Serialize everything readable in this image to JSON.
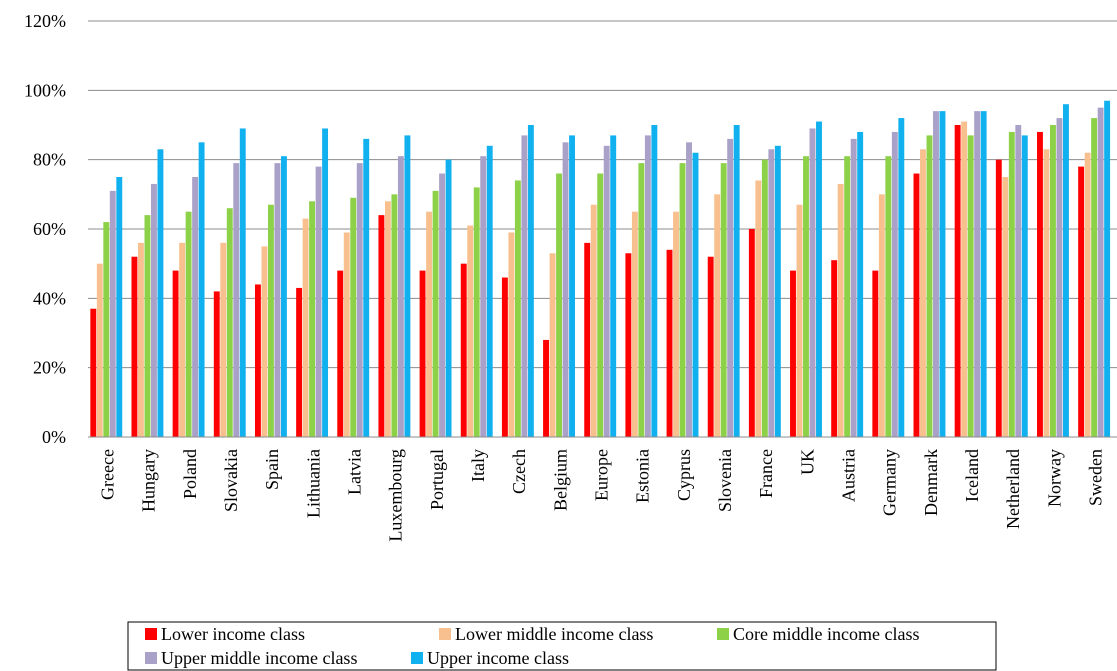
{
  "chart_data": {
    "type": "bar",
    "title": "",
    "xlabel": "",
    "ylabel": "",
    "ylim": [
      0,
      120
    ],
    "yticks": [
      "0%",
      "20%",
      "40%",
      "60%",
      "80%",
      "100%",
      "120%"
    ],
    "grid": true,
    "legend_position": "bottom",
    "categories": [
      "Greece",
      "Hungary",
      "Poland",
      "Slovakia",
      "Spain",
      "Lithuania",
      "Latvia",
      "Luxembourg",
      "Portugal",
      "Italy",
      "Czech",
      "Belgium",
      "Europe",
      "Estonia",
      "Cyprus",
      "Slovenia",
      "France",
      "UK",
      "Austria",
      "Germany",
      "Denmark",
      "Iceland",
      "Netherland",
      "Norway",
      "Sweden"
    ],
    "series": [
      {
        "name": "Lower income class",
        "color": "#FF0000",
        "values": [
          37,
          52,
          48,
          42,
          44,
          43,
          48,
          64,
          48,
          50,
          46,
          28,
          56,
          53,
          54,
          52,
          60,
          48,
          51,
          48,
          76,
          90,
          80,
          88,
          78
        ]
      },
      {
        "name": "Lower middle income class",
        "color": "#F9C08F",
        "values": [
          50,
          56,
          56,
          56,
          55,
          63,
          59,
          68,
          65,
          61,
          59,
          53,
          67,
          65,
          65,
          70,
          74,
          67,
          73,
          70,
          83,
          91,
          75,
          83,
          82
        ]
      },
      {
        "name": "Core middle income class",
        "color": "#8CD147",
        "values": [
          62,
          64,
          65,
          66,
          67,
          68,
          69,
          70,
          71,
          72,
          74,
          76,
          76,
          79,
          79,
          79,
          80,
          81,
          81,
          81,
          87,
          87,
          88,
          90,
          92
        ]
      },
      {
        "name": "Upper middle income class",
        "color": "#A9A1C8",
        "values": [
          71,
          73,
          75,
          79,
          79,
          78,
          79,
          81,
          76,
          81,
          87,
          85,
          84,
          87,
          85,
          86,
          83,
          89,
          86,
          88,
          94,
          94,
          90,
          92,
          95
        ]
      },
      {
        "name": "Upper income class",
        "color": "#11B0EE",
        "values": [
          75,
          83,
          85,
          89,
          81,
          89,
          86,
          87,
          80,
          84,
          90,
          87,
          87,
          90,
          82,
          90,
          84,
          91,
          88,
          92,
          94,
          94,
          87,
          96,
          97
        ]
      }
    ]
  }
}
